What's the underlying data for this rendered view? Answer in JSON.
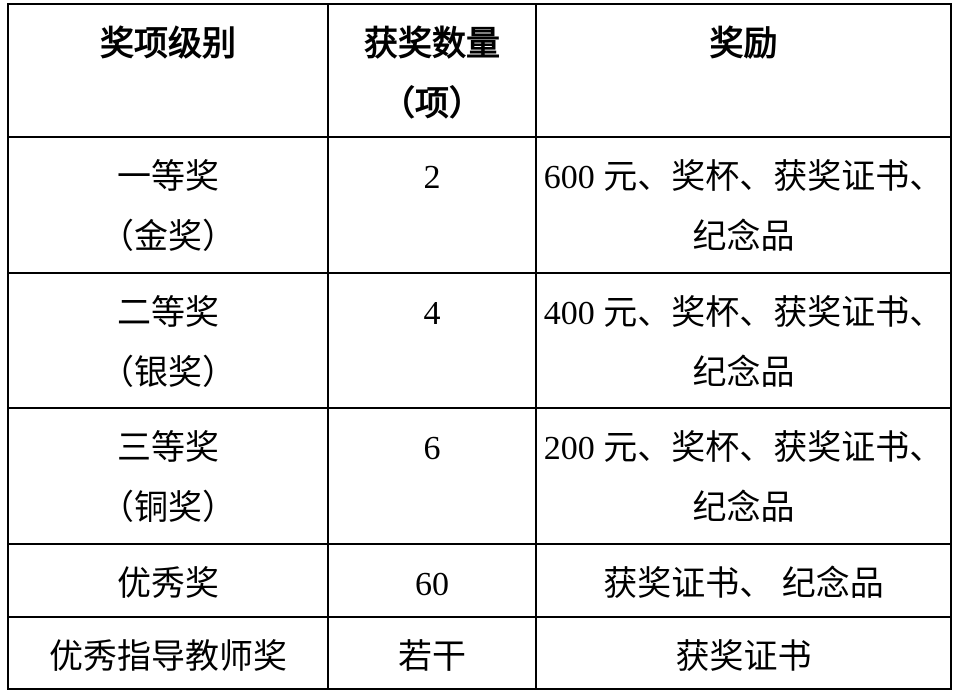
{
  "page": {
    "background": "#ffffff",
    "table_border_color": "#000000",
    "text_color": "#000000"
  },
  "table": {
    "header": {
      "level_lines": [
        "奖项级别"
      ],
      "count_lines": [
        "获奖数量",
        "（项）"
      ],
      "reward_lines": [
        "奖励"
      ]
    },
    "rows": [
      {
        "level_lines": [
          "一等奖",
          "（金奖）"
        ],
        "count_lines": [
          "2"
        ],
        "reward_lines": [
          "600 元、奖杯、获奖证书、",
          "纪念品"
        ]
      },
      {
        "level_lines": [
          "二等奖",
          "（银奖）"
        ],
        "count_lines": [
          "4"
        ],
        "reward_lines": [
          "400 元、奖杯、获奖证书、",
          "纪念品"
        ]
      },
      {
        "level_lines": [
          "三等奖",
          "（铜奖）"
        ],
        "count_lines": [
          "6"
        ],
        "reward_lines": [
          "200 元、奖杯、获奖证书、",
          "纪念品"
        ]
      },
      {
        "level_lines": [
          "优秀奖"
        ],
        "count_lines": [
          "60"
        ],
        "reward_lines": [
          "获奖证书、 纪念品"
        ]
      },
      {
        "level_lines": [
          "优秀指导教师奖"
        ],
        "count_lines": [
          "若干"
        ],
        "reward_lines": [
          "获奖证书"
        ]
      }
    ]
  }
}
